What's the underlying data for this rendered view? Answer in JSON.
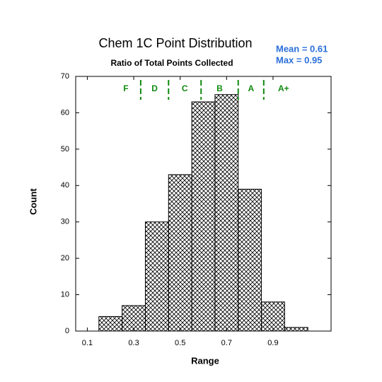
{
  "chart_data": {
    "type": "histogram",
    "title": "Chem 1C Point Distribution",
    "subtitle": "Ratio of Total Points Collected",
    "x_label": "Range",
    "y_label": "Count",
    "annotations": [
      "Mean = 0.61",
      "Max = 0.95"
    ],
    "bins": [
      0.15,
      0.25,
      0.35,
      0.45,
      0.55,
      0.65,
      0.75,
      0.85,
      0.95,
      1.05
    ],
    "values": [
      4,
      7,
      30,
      43,
      63,
      65,
      39,
      8,
      1
    ],
    "color": "#000000",
    "grade_letters": [
      "F",
      "D",
      "C",
      "B",
      "A",
      "A+"
    ],
    "grade_cutoffs": [
      0.33,
      0.45,
      0.59,
      0.75,
      0.86
    ],
    "grade_color": "#108a10",
    "xlim": [
      0.05,
      1.15
    ],
    "ylim": [
      0,
      70
    ],
    "xticks": [
      0.1,
      0.3,
      0.5,
      0.7,
      0.9
    ],
    "yticks": [
      0,
      10,
      20,
      30,
      40,
      50,
      60,
      70
    ],
    "grid": false
  }
}
